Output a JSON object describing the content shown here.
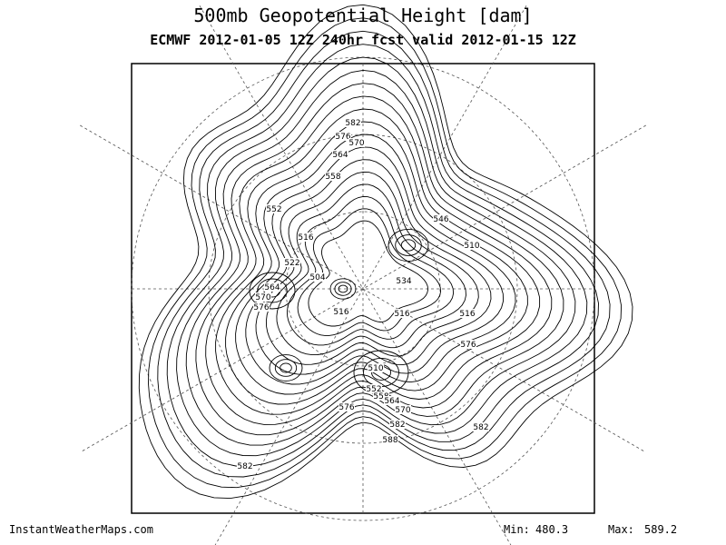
{
  "header": {
    "title": "500mb Geopotential Height [dam]",
    "subtitle": "ECMWF 2012-01-05 12Z 240hr fcst valid 2012-01-15 12Z"
  },
  "contour_labels": [
    582,
    576,
    570,
    564,
    558,
    552,
    546,
    516,
    522,
    504,
    564,
    570,
    576,
    516,
    510,
    516,
    534,
    516,
    576,
    510,
    552,
    558,
    564,
    570,
    576,
    582,
    588,
    582,
    582
  ],
  "footer": {
    "site": "InstantWeatherMaps.com",
    "min": {
      "label": "Min:",
      "value": 480.3
    },
    "max": {
      "label": "Max:",
      "value": 589.2
    }
  }
}
